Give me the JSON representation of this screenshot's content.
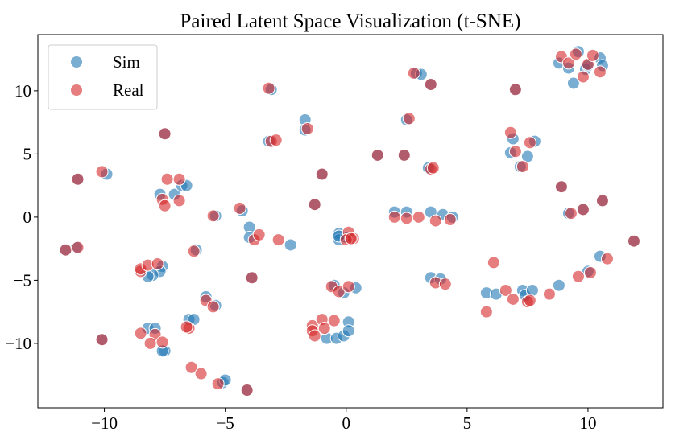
{
  "chart_data": {
    "type": "scatter",
    "title": "Paired Latent Space Visualization (t-SNE)",
    "xlabel": "",
    "ylabel": "",
    "xlim": [
      -12.75,
      13.1
    ],
    "ylim": [
      -15.1,
      14.45
    ],
    "xticks": [
      -10,
      -5,
      0,
      5,
      10
    ],
    "yticks": [
      -10,
      -5,
      0,
      5,
      10
    ],
    "xtick_labels": [
      "−10",
      "−5",
      "0",
      "5",
      "10"
    ],
    "ytick_labels": [
      "−10",
      "−5",
      "0",
      "5",
      "10"
    ],
    "grid": false,
    "legend_position": "top-left",
    "series": [
      {
        "name": "Sim",
        "color": "#1f77b4",
        "points": [
          [
            -11.6,
            -2.6
          ],
          [
            -11.15,
            -2.4
          ],
          [
            -11.1,
            3.0
          ],
          [
            -9.9,
            3.4
          ],
          [
            -10.1,
            -9.7
          ],
          [
            -7.5,
            6.6
          ],
          [
            -7.6,
            -3.9
          ],
          [
            -7.7,
            -4.3
          ],
          [
            -8.0,
            -4.6
          ],
          [
            -8.2,
            -4.7
          ],
          [
            -8.2,
            -8.8
          ],
          [
            -7.9,
            -8.8
          ],
          [
            -7.5,
            -10.6
          ],
          [
            -7.6,
            -10.6
          ],
          [
            -7.7,
            1.8
          ],
          [
            -7.1,
            1.8
          ],
          [
            -6.8,
            2.5
          ],
          [
            -6.6,
            2.5
          ],
          [
            -5.4,
            0.1
          ],
          [
            -6.2,
            -2.6
          ],
          [
            -5.8,
            -6.3
          ],
          [
            -5.4,
            -7.0
          ],
          [
            -6.5,
            -8.1
          ],
          [
            -6.3,
            -8.1
          ],
          [
            -5.1,
            -13.1
          ],
          [
            -5.0,
            -12.9
          ],
          [
            -4.1,
            -13.7
          ],
          [
            -4.3,
            0.5
          ],
          [
            -4.0,
            -0.8
          ],
          [
            -4.0,
            -1.6
          ],
          [
            -2.3,
            -2.2
          ],
          [
            -3.9,
            -4.8
          ],
          [
            -3.1,
            10.1
          ],
          [
            -3.2,
            6.0
          ],
          [
            -1.7,
            7.7
          ],
          [
            -1.7,
            6.9
          ],
          [
            -1.0,
            3.4
          ],
          [
            -1.3,
            1.0
          ],
          [
            -0.3,
            -1.3
          ],
          [
            -0.3,
            -1.8
          ],
          [
            0.0,
            -1.6
          ],
          [
            -0.3,
            -1.5
          ],
          [
            -0.5,
            -5.4
          ],
          [
            -0.1,
            -6.0
          ],
          [
            0.4,
            -5.6
          ],
          [
            -0.8,
            -9.6
          ],
          [
            -0.4,
            -9.6
          ],
          [
            -0.1,
            -9.4
          ],
          [
            0.1,
            -8.3
          ],
          [
            0.1,
            -9.0
          ],
          [
            1.3,
            4.9
          ],
          [
            2.0,
            0.4
          ],
          [
            2.5,
            0.4
          ],
          [
            3.5,
            0.4
          ],
          [
            4.0,
            0.2
          ],
          [
            4.4,
            0.0
          ],
          [
            2.4,
            4.9
          ],
          [
            2.5,
            7.7
          ],
          [
            2.9,
            11.4
          ],
          [
            3.1,
            11.3
          ],
          [
            3.5,
            10.5
          ],
          [
            3.4,
            3.9
          ],
          [
            3.5,
            -4.8
          ],
          [
            3.9,
            -4.9
          ],
          [
            5.8,
            -6.0
          ],
          [
            6.2,
            -6.1
          ],
          [
            7.3,
            -5.8
          ],
          [
            7.4,
            -6.2
          ],
          [
            7.7,
            -5.8
          ],
          [
            8.8,
            -5.4
          ],
          [
            10.0,
            -4.3
          ],
          [
            10.5,
            -3.1
          ],
          [
            11.9,
            -1.9
          ],
          [
            7.0,
            10.1
          ],
          [
            6.9,
            6.2
          ],
          [
            6.8,
            5.1
          ],
          [
            7.2,
            4.0
          ],
          [
            7.5,
            4.8
          ],
          [
            7.8,
            6.0
          ],
          [
            8.9,
            2.4
          ],
          [
            9.2,
            0.3
          ],
          [
            9.8,
            0.6
          ],
          [
            10.6,
            1.3
          ],
          [
            8.8,
            12.2
          ],
          [
            9.2,
            11.8
          ],
          [
            9.4,
            10.6
          ],
          [
            9.6,
            13.1
          ],
          [
            9.9,
            11.7
          ],
          [
            10.0,
            12.0
          ],
          [
            10.5,
            12.6
          ],
          [
            10.6,
            12.0
          ]
        ]
      },
      {
        "name": "Real",
        "color": "#d62728",
        "points": [
          [
            -11.6,
            -2.6
          ],
          [
            -11.1,
            -2.4
          ],
          [
            -11.1,
            3.0
          ],
          [
            -10.1,
            3.6
          ],
          [
            -10.1,
            -9.7
          ],
          [
            -7.5,
            6.6
          ],
          [
            -8.5,
            -4.3
          ],
          [
            -8.5,
            -4.1
          ],
          [
            -8.2,
            -3.8
          ],
          [
            -7.8,
            -3.7
          ],
          [
            -8.5,
            -9.2
          ],
          [
            -7.9,
            -9.3
          ],
          [
            -8.1,
            -10.0
          ],
          [
            -7.6,
            -9.9
          ],
          [
            -7.6,
            1.4
          ],
          [
            -7.5,
            0.9
          ],
          [
            -7.4,
            3.0
          ],
          [
            -6.9,
            3.0
          ],
          [
            -6.9,
            1.3
          ],
          [
            -5.5,
            0.1
          ],
          [
            -6.3,
            -2.7
          ],
          [
            -5.8,
            -6.6
          ],
          [
            -5.5,
            -7.1
          ],
          [
            -6.5,
            -8.8
          ],
          [
            -6.6,
            -8.7
          ],
          [
            -6.4,
            -11.9
          ],
          [
            -6.0,
            -12.4
          ],
          [
            -5.3,
            -13.2
          ],
          [
            -4.1,
            -13.7
          ],
          [
            -4.4,
            0.7
          ],
          [
            -3.8,
            -1.8
          ],
          [
            -3.6,
            -1.4
          ],
          [
            -2.8,
            -1.8
          ],
          [
            -3.9,
            -4.8
          ],
          [
            -3.2,
            10.2
          ],
          [
            -3.1,
            6.0
          ],
          [
            -2.9,
            6.1
          ],
          [
            -1.6,
            7.0
          ],
          [
            -1.0,
            3.4
          ],
          [
            -1.3,
            1.0
          ],
          [
            0.1,
            -1.2
          ],
          [
            0.3,
            -1.7
          ],
          [
            0.0,
            -1.8
          ],
          [
            0.2,
            -1.7
          ],
          [
            -0.6,
            -5.5
          ],
          [
            -0.3,
            -5.9
          ],
          [
            0.1,
            -5.5
          ],
          [
            -1.4,
            -8.6
          ],
          [
            -1.4,
            -9.0
          ],
          [
            -1.3,
            -9.4
          ],
          [
            -1.0,
            -8.1
          ],
          [
            -0.9,
            -8.8
          ],
          [
            -0.5,
            -8.2
          ],
          [
            1.3,
            4.9
          ],
          [
            2.0,
            0.0
          ],
          [
            2.5,
            -0.1
          ],
          [
            3.0,
            0.0
          ],
          [
            3.7,
            -0.3
          ],
          [
            4.3,
            -0.2
          ],
          [
            2.4,
            4.9
          ],
          [
            2.6,
            7.8
          ],
          [
            2.8,
            11.4
          ],
          [
            3.5,
            10.5
          ],
          [
            3.5,
            3.8
          ],
          [
            3.6,
            3.9
          ],
          [
            3.7,
            -5.2
          ],
          [
            4.1,
            -5.3
          ],
          [
            5.8,
            -7.5
          ],
          [
            6.1,
            -3.6
          ],
          [
            6.6,
            -5.8
          ],
          [
            6.9,
            -6.5
          ],
          [
            7.5,
            -6.7
          ],
          [
            7.6,
            -6.6
          ],
          [
            8.4,
            -6.1
          ],
          [
            9.6,
            -4.7
          ],
          [
            10.1,
            -4.4
          ],
          [
            10.8,
            -3.3
          ],
          [
            11.9,
            -1.9
          ],
          [
            7.0,
            10.1
          ],
          [
            6.8,
            6.7
          ],
          [
            7.0,
            5.2
          ],
          [
            7.3,
            4.0
          ],
          [
            7.6,
            5.9
          ],
          [
            8.9,
            2.4
          ],
          [
            9.3,
            0.3
          ],
          [
            9.8,
            0.6
          ],
          [
            10.6,
            1.3
          ],
          [
            8.9,
            12.7
          ],
          [
            9.2,
            12.2
          ],
          [
            9.5,
            12.9
          ],
          [
            9.8,
            11.1
          ],
          [
            10.0,
            12.1
          ],
          [
            10.2,
            12.8
          ],
          [
            10.5,
            11.5
          ]
        ]
      }
    ]
  }
}
